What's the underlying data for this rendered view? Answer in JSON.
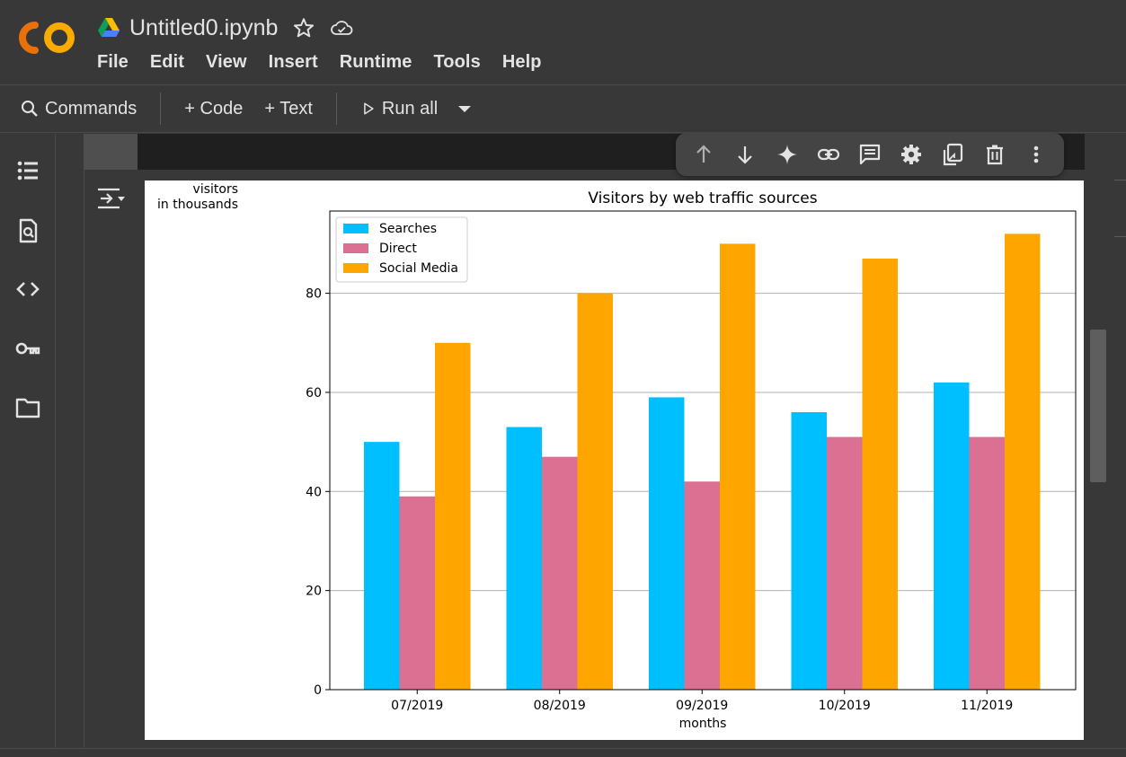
{
  "header": {
    "doc_title": "Untitled0.ipynb",
    "menu": [
      "File",
      "Edit",
      "View",
      "Insert",
      "Runtime",
      "Tools",
      "Help"
    ]
  },
  "toolbar": {
    "commands_label": "Commands",
    "code_label": "+ Code",
    "text_label": "+ Text",
    "run_all_label": "Run all"
  },
  "sidebar": {
    "icons": [
      "table-of-contents-icon",
      "find-icon",
      "code-snippets-icon",
      "secrets-key-icon",
      "files-folder-icon"
    ]
  },
  "cell_toolbar": {
    "icons": [
      "move-up-icon",
      "move-down-icon",
      "gemini-sparkle-icon",
      "link-icon",
      "comment-icon",
      "settings-gear-icon",
      "mirror-cell-icon",
      "delete-icon",
      "more-vert-icon"
    ]
  },
  "colors": {
    "searches": "#00bfff",
    "direct": "#db7093",
    "social": "#ffa500"
  },
  "chart_data": {
    "type": "bar",
    "title": "Visitors by web traffic sources",
    "ylabel_line1": "visitors",
    "ylabel_line2": "in thousands",
    "xlabel": "months",
    "categories": [
      "07/2019",
      "08/2019",
      "09/2019",
      "10/2019",
      "11/2019"
    ],
    "series": [
      {
        "name": "Searches",
        "values": [
          50,
          53,
          59,
          56,
          62
        ]
      },
      {
        "name": "Direct",
        "values": [
          39,
          47,
          42,
          51,
          51
        ]
      },
      {
        "name": "Social Media",
        "values": [
          70,
          80,
          90,
          87,
          92
        ]
      }
    ],
    "yticks": [
      "0",
      "20",
      "40",
      "60",
      "80"
    ],
    "ylim": [
      0,
      96.6
    ],
    "grid": "y",
    "legend_position": "top-left"
  }
}
